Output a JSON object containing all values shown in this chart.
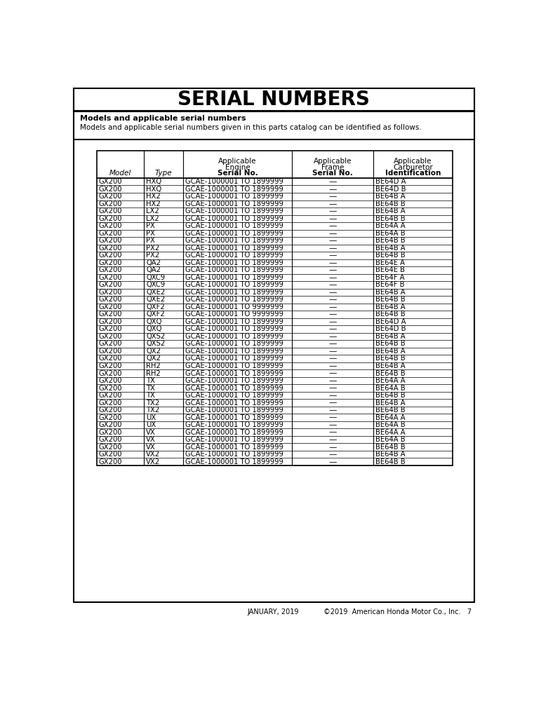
{
  "title": "SERIAL NUMBERS",
  "subtitle_bold": "Models and applicable serial numbers",
  "subtitle_text": "Models and applicable serial numbers given in this parts catalog can be identified as follows.",
  "col_headers": [
    "Model",
    "Type",
    "Applicable\nEngine\nSerial No.",
    "Applicable\nFrame\nSerial No.",
    "Applicable\nCarburetor\nIdentification"
  ],
  "rows": [
    [
      "GX200",
      "HXQ",
      "GCAE-1000001 TO 1899999",
      "—",
      "BE64D A"
    ],
    [
      "GX200",
      "HXQ",
      "GCAE-1000001 TO 1899999",
      "—",
      "BE64D B"
    ],
    [
      "GX200",
      "HX2",
      "GCAE-1000001 TO 1899999",
      "—",
      "BE64B A"
    ],
    [
      "GX200",
      "HX2",
      "GCAE-1000001 TO 1899999",
      "—",
      "BE64B B"
    ],
    [
      "GX200",
      "LX2",
      "GCAE-1000001 TO 1899999",
      "—",
      "BE64B A"
    ],
    [
      "GX200",
      "LX2",
      "GCAE-1000001 TO 1899999",
      "—",
      "BE64B B"
    ],
    [
      "GX200",
      "PX",
      "GCAE-1000001 TO 1899999",
      "—",
      "BE64A A"
    ],
    [
      "GX200",
      "PX",
      "GCAE-1000001 TO 1899999",
      "—",
      "BE64A B"
    ],
    [
      "GX200",
      "PX",
      "GCAE-1000001 TO 1899999",
      "—",
      "BE64B B"
    ],
    [
      "GX200",
      "PX2",
      "GCAE-1000001 TO 1899999",
      "—",
      "BE64B A"
    ],
    [
      "GX200",
      "PX2",
      "GCAE-1000001 TO 1899999",
      "—",
      "BE64B B"
    ],
    [
      "GX200",
      "QA2",
      "GCAE-1000001 TO 1899999",
      "—",
      "BE64E A"
    ],
    [
      "GX200",
      "QA2",
      "GCAE-1000001 TO 1899999",
      "—",
      "BE64E B"
    ],
    [
      "GX200",
      "QXC9",
      "GCAE-1000001 TO 1899999",
      "—",
      "BE64F A"
    ],
    [
      "GX200",
      "QXC9",
      "GCAE-1000001 TO 1899999",
      "—",
      "BE64F B"
    ],
    [
      "GX200",
      "QXE2",
      "GCAE-1000001 TO 1899999",
      "—",
      "BE64B A"
    ],
    [
      "GX200",
      "QXE2",
      "GCAE-1000001 TO 1899999",
      "—",
      "BE64B B"
    ],
    [
      "GX200",
      "QXF2",
      "GCAE-1000001 TO 9999999",
      "—",
      "BE64B A"
    ],
    [
      "GX200",
      "QXF2",
      "GCAE-1000001 TO 9999999",
      "—",
      "BE64B B"
    ],
    [
      "GX200",
      "QXQ",
      "GCAE-1000001 TO 1899999",
      "—",
      "BE64D A"
    ],
    [
      "GX200",
      "QXQ",
      "GCAE-1000001 TO 1899999",
      "—",
      "BE64D B"
    ],
    [
      "GX200",
      "QXS2",
      "GCAE-1000001 TO 1899999",
      "—",
      "BE64B A"
    ],
    [
      "GX200",
      "QXS2",
      "GCAE-1000001 TO 1899999",
      "—",
      "BE64B B"
    ],
    [
      "GX200",
      "QX2",
      "GCAE-1000001 TO 1899999",
      "—",
      "BE64B A"
    ],
    [
      "GX200",
      "QX2",
      "GCAE-1000001 TO 1899999",
      "—",
      "BE64B B"
    ],
    [
      "GX200",
      "RH2",
      "GCAE-1000001 TO 1899999",
      "—",
      "BE64B A"
    ],
    [
      "GX200",
      "RH2",
      "GCAE-1000001 TO 1899999",
      "—",
      "BE64B B"
    ],
    [
      "GX200",
      "TX",
      "GCAE-1000001 TO 1899999",
      "—",
      "BE64A A"
    ],
    [
      "GX200",
      "TX",
      "GCAE-1000001 TO 1899999",
      "—",
      "BE64A B"
    ],
    [
      "GX200",
      "TX",
      "GCAE-1000001 TO 1899999",
      "—",
      "BE64B B"
    ],
    [
      "GX200",
      "TX2",
      "GCAE-1000001 TO 1899999",
      "—",
      "BE64B A"
    ],
    [
      "GX200",
      "TX2",
      "GCAE-1000001 TO 1899999",
      "—",
      "BE64B B"
    ],
    [
      "GX200",
      "UX",
      "GCAE-1000001 TO 1899999",
      "—",
      "BE64A A"
    ],
    [
      "GX200",
      "UX",
      "GCAE-1000001 TO 1899999",
      "—",
      "BE64A B"
    ],
    [
      "GX200",
      "VX",
      "GCAE-1000001 TO 1899999",
      "—",
      "BE64A A"
    ],
    [
      "GX200",
      "VX",
      "GCAE-1000001 TO 1899999",
      "—",
      "BE64A B"
    ],
    [
      "GX200",
      "VX",
      "GCAE-1000001 TO 1899999",
      "—",
      "BE64B B"
    ],
    [
      "GX200",
      "VX2",
      "GCAE-1000001 TO 1899999",
      "—",
      "BE64B A"
    ],
    [
      "GX200",
      "VX2",
      "GCAE-1000001 TO 1899999",
      "—",
      "BE64B B"
    ]
  ],
  "footer_left": "JANUARY, 2019",
  "footer_right": "©2019  American Honda Motor Co., Inc.   7",
  "bg_color": "#ffffff",
  "text_color": "#000000",
  "title_font_size": 20,
  "subtitle_bold_size": 8,
  "subtitle_text_size": 7.5,
  "header_font_size": 7.5,
  "row_font_size": 7.2,
  "footer_font_size": 7.0
}
